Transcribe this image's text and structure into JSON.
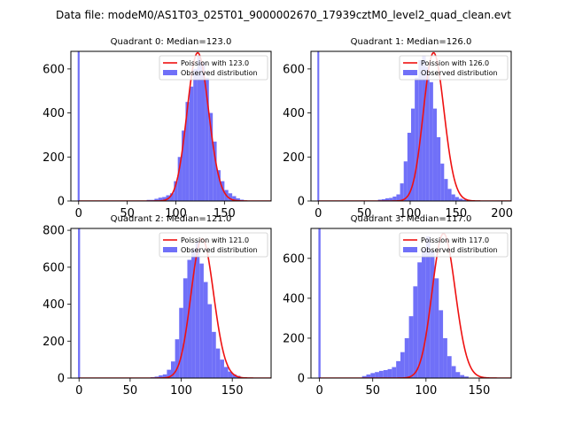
{
  "suptitle": "Data file: modeM0/AS1T03_025T01_9000002670_17939cztM0_level2_quad_clean.evt",
  "chart_data": [
    {
      "type": "bar",
      "title": "Quadrant 0: Median=123.0",
      "xlim": [
        -8,
        198
      ],
      "ylim": [
        0,
        680
      ],
      "xticks": [
        0,
        50,
        100,
        150
      ],
      "yticks": [
        0,
        200,
        400,
        600
      ],
      "bin_start": 70,
      "bin_width": 4,
      "values": [
        5,
        5,
        10,
        15,
        18,
        26,
        35,
        90,
        200,
        320,
        450,
        520,
        600,
        660,
        630,
        560,
        400,
        270,
        140,
        90,
        50,
        35,
        22,
        12,
        6
      ],
      "spike": {
        "x": 0,
        "value": 700
      },
      "poisson_mean": 123,
      "legend": [
        "Poission with 123.0",
        "Observed distribution"
      ]
    },
    {
      "type": "bar",
      "title": "Quadrant 1: Median=126.0",
      "xlim": [
        -8,
        210
      ],
      "ylim": [
        0,
        680
      ],
      "xticks": [
        0,
        50,
        100,
        150,
        200
      ],
      "yticks": [
        0,
        200,
        400,
        600
      ],
      "bin_start": 65,
      "bin_width": 4,
      "values": [
        6,
        8,
        12,
        14,
        20,
        30,
        80,
        180,
        310,
        420,
        560,
        640,
        660,
        610,
        540,
        420,
        290,
        170,
        100,
        55,
        30,
        18,
        10,
        6
      ],
      "spike": {
        "x": 0,
        "value": 700
      },
      "poisson_mean": 126,
      "legend": [
        "Poission with 126.0",
        "Observed distribution"
      ]
    },
    {
      "type": "bar",
      "title": "Quadrant 2: Median=121.0",
      "xlim": [
        -8,
        188
      ],
      "ylim": [
        0,
        810
      ],
      "xticks": [
        0,
        50,
        100,
        150
      ],
      "yticks": [
        0,
        200,
        400,
        600,
        800
      ],
      "bin_start": 70,
      "bin_width": 4,
      "values": [
        5,
        8,
        15,
        20,
        45,
        90,
        210,
        380,
        540,
        640,
        700,
        740,
        620,
        520,
        400,
        250,
        160,
        100,
        60,
        35,
        20,
        12
      ],
      "spike": {
        "x": 0,
        "value": 820
      },
      "poisson_mean": 121,
      "legend": [
        "Poission with 121.0",
        "Observed distribution"
      ]
    },
    {
      "type": "bar",
      "title": "Quadrant 3: Median=117.0",
      "xlim": [
        -8,
        180
      ],
      "ylim": [
        0,
        750
      ],
      "xticks": [
        0,
        50,
        100,
        150
      ],
      "yticks": [
        0,
        200,
        400,
        600
      ],
      "bin_start": 40,
      "bin_width": 4,
      "values": [
        10,
        18,
        25,
        30,
        36,
        40,
        45,
        55,
        85,
        130,
        200,
        310,
        460,
        580,
        650,
        710,
        640,
        500,
        340,
        200,
        110,
        60,
        30,
        15,
        8
      ],
      "spike": {
        "x": 0,
        "value": 760
      },
      "poisson_mean": 117,
      "legend": [
        "Poission with 117.0",
        "Observed distribution"
      ]
    }
  ],
  "colors": {
    "bars": "#7070f8",
    "poisson": "#ee1111"
  }
}
